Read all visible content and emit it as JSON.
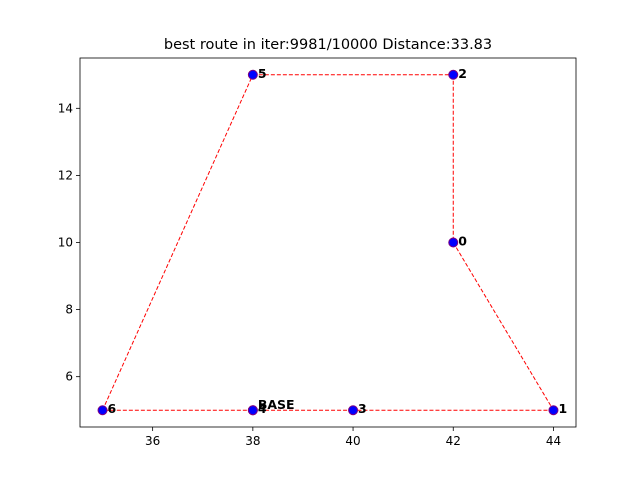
{
  "chart_data": {
    "type": "scatter",
    "title": "best route in iter:9981/10000 Distance:33.83",
    "xlabel": "",
    "ylabel": "",
    "xlim": [
      34.55,
      44.45
    ],
    "ylim": [
      4.5,
      15.5
    ],
    "xticks": [
      36,
      38,
      40,
      42,
      44
    ],
    "yticks": [
      6,
      8,
      10,
      12,
      14
    ],
    "grid": false,
    "point_color": "#0000ff",
    "point_edge_color": "#800080",
    "route_color": "#ff0000",
    "points": [
      {
        "label": "0",
        "x": 42,
        "y": 10
      },
      {
        "label": "1",
        "x": 44,
        "y": 5
      },
      {
        "label": "2",
        "x": 42,
        "y": 15
      },
      {
        "label": "3",
        "x": 40,
        "y": 5
      },
      {
        "label": "4",
        "x": 38,
        "y": 5
      },
      {
        "label": "5",
        "x": 38,
        "y": 15
      },
      {
        "label": "6",
        "x": 35,
        "y": 5
      },
      {
        "label": "BASE",
        "x": 38,
        "y": 5
      }
    ],
    "route": [
      {
        "x": 38,
        "y": 5
      },
      {
        "x": 35,
        "y": 5
      },
      {
        "x": 38,
        "y": 15
      },
      {
        "x": 42,
        "y": 15
      },
      {
        "x": 42,
        "y": 10
      },
      {
        "x": 44,
        "y": 5
      },
      {
        "x": 40,
        "y": 5
      },
      {
        "x": 38,
        "y": 5
      }
    ]
  }
}
